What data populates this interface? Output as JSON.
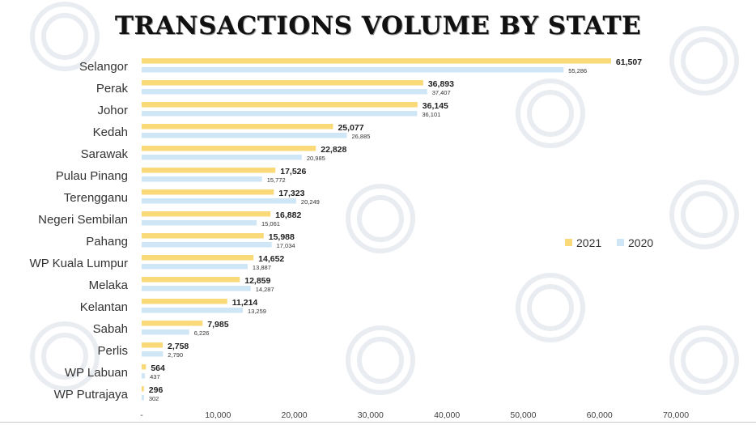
{
  "chart_data": {
    "type": "bar",
    "orientation": "horizontal",
    "title": "TRANSACTIONS VOLUME BY STATE",
    "categories": [
      "Selangor",
      "Perak",
      "Johor",
      "Kedah",
      "Sarawak",
      "Pulau Pinang",
      "Terengganu",
      "Negeri Sembilan",
      "Pahang",
      "WP Kuala Lumpur",
      "Melaka",
      "Kelantan",
      "Sabah",
      "Perlis",
      "WP Labuan",
      "WP Putrajaya"
    ],
    "series": [
      {
        "name": "2021",
        "color": "#f9d978",
        "values": [
          61507,
          36893,
          36145,
          25077,
          22828,
          17526,
          17323,
          16882,
          15988,
          14652,
          12859,
          11214,
          7985,
          2758,
          564,
          296
        ],
        "labels": [
          "61,507",
          "36,893",
          "36,145",
          "25,077",
          "22,828",
          "17,526",
          "17,323",
          "16,882",
          "15,988",
          "14,652",
          "12,859",
          "11,214",
          "7,985",
          "2,758",
          "564",
          "296"
        ]
      },
      {
        "name": "2020",
        "color": "#cfe6f6",
        "values": [
          55286,
          37407,
          36101,
          26885,
          20985,
          15772,
          20249,
          15061,
          17034,
          13887,
          14287,
          13259,
          6226,
          2790,
          437,
          302
        ],
        "labels": [
          "55,286",
          "37,407",
          "36,101",
          "26,885",
          "20,985",
          "15,772",
          "20,249",
          "15,061",
          "17,034",
          "13,887",
          "14,287",
          "13,259",
          "6,226",
          "2,790",
          "437",
          "302"
        ]
      }
    ],
    "xlim": [
      0,
      70000
    ],
    "x_ticks": [
      0,
      10000,
      20000,
      30000,
      40000,
      50000,
      60000,
      70000
    ],
    "x_tick_labels": [
      "-",
      "10,000",
      "20,000",
      "30,000",
      "40,000",
      "50,000",
      "60,000",
      "70,000"
    ],
    "legend_position": "right",
    "grid": false
  }
}
